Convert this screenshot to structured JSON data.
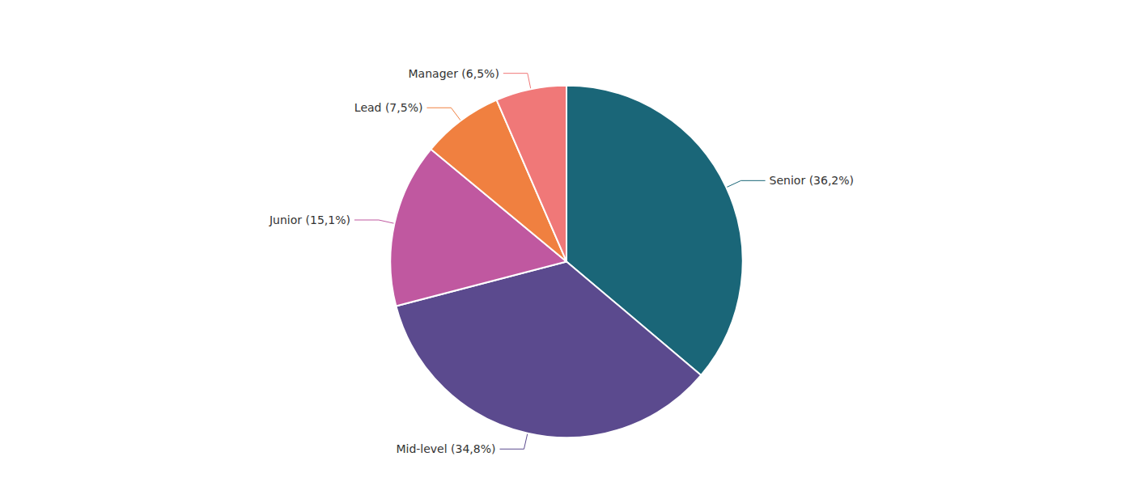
{
  "chart_data": {
    "type": "pie",
    "categories": [
      "Senior (36,2%)",
      "Mid-level (34,8%)",
      "Junior (15,1%)",
      "Lead (7,5%)",
      "Manager (6,5%)"
    ],
    "values": [
      36.2,
      34.8,
      15.1,
      7.5,
      6.5
    ],
    "colors": [
      "#1a6678",
      "#5b4a8e",
      "#c058a0",
      "#f08040",
      "#f07878"
    ]
  }
}
